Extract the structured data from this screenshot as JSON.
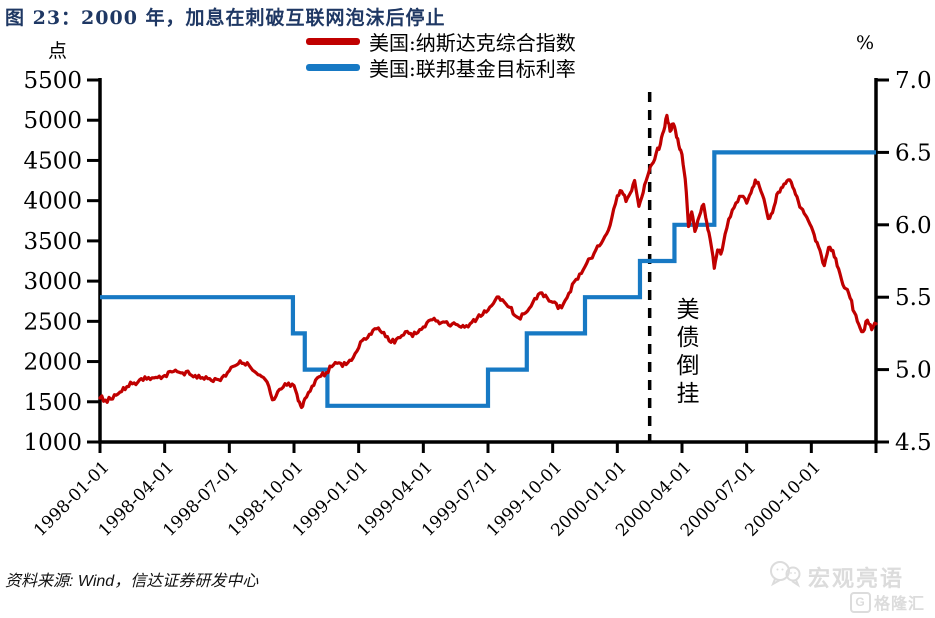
{
  "figure": {
    "title": "图 23：2000 年，加息在刺破互联网泡沫后停止",
    "source": "资料来源: Wind，信达证券研发中心"
  },
  "watermarks": {
    "wechat_name": "宏观亮语",
    "platform_name": "格隆汇",
    "platform_icon_letter": "G"
  },
  "chart_data": {
    "type": "line",
    "title": "2000年，加息在刺破互联网泡沫后停止",
    "grid": false,
    "legend_position": "top-center",
    "x_axis": {
      "start": "1998-01-01",
      "end": "2000-12-31",
      "span_months": 36,
      "tick_months": [
        0,
        3,
        6,
        9,
        12,
        15,
        18,
        21,
        24,
        27,
        30,
        33
      ],
      "tick_labels": [
        "1998-01-01",
        "1998-04-01",
        "1998-07-01",
        "1998-10-01",
        "1999-01-01",
        "1999-04-01",
        "1999-07-01",
        "1999-10-01",
        "2000-01-01",
        "2000-04-01",
        "2000-07-01",
        "2000-10-01"
      ]
    },
    "left_axis": {
      "unit": "点",
      "min": 1000,
      "max": 5500,
      "ticks": [
        5500,
        5000,
        4500,
        4000,
        3500,
        3000,
        2500,
        2000,
        1500,
        1000
      ]
    },
    "right_axis": {
      "unit": "%",
      "min": 4.5,
      "max": 7.0,
      "ticks": [
        "7.0",
        "6.5",
        "6.0",
        "5.5",
        "5.0",
        "4.5"
      ]
    },
    "annotation": {
      "text": "美债倒挂",
      "line_month": 25.5,
      "line_style": "black-dashed-vertical"
    },
    "series": [
      {
        "name": "美国:纳斯达克综合指数",
        "color": "#c00000",
        "axis": "left",
        "style": "line",
        "points_month_value": [
          [
            0,
            1560
          ],
          [
            0.25,
            1510
          ],
          [
            0.5,
            1545
          ],
          [
            0.75,
            1580
          ],
          [
            1,
            1630
          ],
          [
            1.25,
            1690
          ],
          [
            1.5,
            1720
          ],
          [
            1.75,
            1750
          ],
          [
            2,
            1770
          ],
          [
            2.25,
            1800
          ],
          [
            2.5,
            1785
          ],
          [
            2.75,
            1810
          ],
          [
            3,
            1835
          ],
          [
            3.25,
            1865
          ],
          [
            3.5,
            1885
          ],
          [
            3.75,
            1860
          ],
          [
            4,
            1865
          ],
          [
            4.25,
            1830
          ],
          [
            4.5,
            1790
          ],
          [
            4.75,
            1805
          ],
          [
            5,
            1780
          ],
          [
            5.25,
            1750
          ],
          [
            5.5,
            1770
          ],
          [
            5.75,
            1830
          ],
          [
            6,
            1895
          ],
          [
            6.25,
            1950
          ],
          [
            6.5,
            2010
          ],
          [
            6.75,
            1970
          ],
          [
            7,
            1930
          ],
          [
            7.25,
            1860
          ],
          [
            7.5,
            1800
          ],
          [
            7.75,
            1740
          ],
          [
            8,
            1530
          ],
          [
            8.25,
            1630
          ],
          [
            8.5,
            1690
          ],
          [
            8.75,
            1730
          ],
          [
            9,
            1690
          ],
          [
            9.2,
            1500
          ],
          [
            9.35,
            1430
          ],
          [
            9.5,
            1530
          ],
          [
            9.75,
            1630
          ],
          [
            10,
            1760
          ],
          [
            10.25,
            1820
          ],
          [
            10.5,
            1870
          ],
          [
            10.75,
            1930
          ],
          [
            11,
            1970
          ],
          [
            11.25,
            1945
          ],
          [
            11.5,
            1985
          ],
          [
            11.75,
            2060
          ],
          [
            12,
            2180
          ],
          [
            12.25,
            2290
          ],
          [
            12.5,
            2350
          ],
          [
            12.75,
            2400
          ],
          [
            13,
            2380
          ],
          [
            13.25,
            2310
          ],
          [
            13.5,
            2230
          ],
          [
            13.75,
            2280
          ],
          [
            14,
            2330
          ],
          [
            14.25,
            2380
          ],
          [
            14.5,
            2320
          ],
          [
            14.75,
            2370
          ],
          [
            15,
            2440
          ],
          [
            15.25,
            2500
          ],
          [
            15.5,
            2550
          ],
          [
            15.75,
            2480
          ],
          [
            16,
            2500
          ],
          [
            16.25,
            2440
          ],
          [
            16.5,
            2470
          ],
          [
            16.75,
            2430
          ],
          [
            17,
            2450
          ],
          [
            17.25,
            2490
          ],
          [
            17.5,
            2540
          ],
          [
            17.75,
            2590
          ],
          [
            18,
            2650
          ],
          [
            18.25,
            2730
          ],
          [
            18.5,
            2800
          ],
          [
            18.75,
            2750
          ],
          [
            19,
            2670
          ],
          [
            19.25,
            2580
          ],
          [
            19.5,
            2540
          ],
          [
            19.75,
            2600
          ],
          [
            20,
            2690
          ],
          [
            20.25,
            2790
          ],
          [
            20.5,
            2860
          ],
          [
            20.75,
            2800
          ],
          [
            21,
            2740
          ],
          [
            21.25,
            2660
          ],
          [
            21.5,
            2720
          ],
          [
            21.75,
            2850
          ],
          [
            22,
            2980
          ],
          [
            22.25,
            3080
          ],
          [
            22.5,
            3190
          ],
          [
            22.75,
            3280
          ],
          [
            23,
            3380
          ],
          [
            23.25,
            3460
          ],
          [
            23.5,
            3580
          ],
          [
            23.75,
            3780
          ],
          [
            24,
            4070
          ],
          [
            24.2,
            4130
          ],
          [
            24.4,
            3990
          ],
          [
            24.6,
            4100
          ],
          [
            24.8,
            4240
          ],
          [
            25,
            3940
          ],
          [
            25.2,
            4110
          ],
          [
            25.4,
            4300
          ],
          [
            25.6,
            4440
          ],
          [
            25.8,
            4590
          ],
          [
            26,
            4700
          ],
          [
            26.15,
            4860
          ],
          [
            26.3,
            5048
          ],
          [
            26.45,
            4870
          ],
          [
            26.6,
            4950
          ],
          [
            26.75,
            4800
          ],
          [
            26.9,
            4650
          ],
          [
            27,
            4573
          ],
          [
            27.15,
            4270
          ],
          [
            27.3,
            3680
          ],
          [
            27.45,
            3850
          ],
          [
            27.6,
            3620
          ],
          [
            27.8,
            3790
          ],
          [
            28,
            3960
          ],
          [
            28.15,
            3720
          ],
          [
            28.3,
            3520
          ],
          [
            28.5,
            3170
          ],
          [
            28.65,
            3400
          ],
          [
            28.8,
            3330
          ],
          [
            29,
            3590
          ],
          [
            29.25,
            3810
          ],
          [
            29.5,
            3960
          ],
          [
            29.75,
            4060
          ],
          [
            30,
            3970
          ],
          [
            30.2,
            4090
          ],
          [
            30.4,
            4250
          ],
          [
            30.6,
            4180
          ],
          [
            30.8,
            4020
          ],
          [
            31,
            3770
          ],
          [
            31.2,
            3860
          ],
          [
            31.4,
            4070
          ],
          [
            31.6,
            4150
          ],
          [
            31.8,
            4220
          ],
          [
            32,
            4260
          ],
          [
            32.2,
            4130
          ],
          [
            32.4,
            3980
          ],
          [
            32.6,
            3880
          ],
          [
            32.8,
            3800
          ],
          [
            33,
            3670
          ],
          [
            33.2,
            3490
          ],
          [
            33.4,
            3370
          ],
          [
            33.6,
            3190
          ],
          [
            33.8,
            3420
          ],
          [
            34,
            3370
          ],
          [
            34.2,
            3200
          ],
          [
            34.4,
            3030
          ],
          [
            34.6,
            2900
          ],
          [
            34.8,
            2790
          ],
          [
            35,
            2600
          ],
          [
            35.2,
            2450
          ],
          [
            35.4,
            2370
          ],
          [
            35.6,
            2520
          ],
          [
            35.8,
            2400
          ],
          [
            36,
            2470
          ]
        ]
      },
      {
        "name": "美国:联邦基金目标利率",
        "color": "#1779c4",
        "axis": "right",
        "style": "step",
        "points_month_value": [
          [
            0,
            5.5
          ],
          [
            8.95,
            5.25
          ],
          [
            9.5,
            5.0
          ],
          [
            10.55,
            4.75
          ],
          [
            18,
            5.0
          ],
          [
            19.8,
            5.25
          ],
          [
            22.5,
            5.5
          ],
          [
            25.05,
            5.75
          ],
          [
            26.65,
            6.0
          ],
          [
            28.5,
            6.5
          ],
          [
            36,
            6.5
          ]
        ]
      }
    ]
  }
}
